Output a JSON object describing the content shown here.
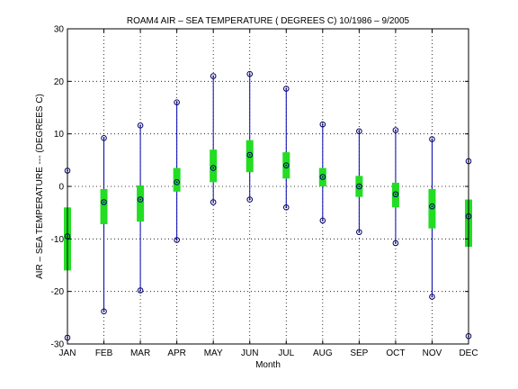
{
  "chart_data": {
    "type": "box",
    "title": "ROAM4  AIR – SEA TEMPERATURE ( DEGREES C) 10/1986 – 9/2005",
    "xlabel": "Month",
    "ylabel": "AIR – SEA TEMPERATURE --- (DEGREES C)",
    "categories": [
      "JAN",
      "FEB",
      "MAR",
      "APR",
      "MAY",
      "JUN",
      "JUL",
      "AUG",
      "SEP",
      "OCT",
      "NOV",
      "DEC"
    ],
    "ylim": [
      -30,
      30
    ],
    "yticks": [
      "-30",
      "-20",
      "-10",
      "0",
      "10",
      "20",
      "30"
    ],
    "grid": true,
    "series": [
      {
        "max": [
          3,
          9.2,
          11.6,
          16,
          21,
          21.4,
          18.6,
          11.8,
          10.5,
          10.7,
          9,
          4.8
        ],
        "q3": [
          -4,
          -0.5,
          0.2,
          3.5,
          7,
          8.8,
          6.5,
          3.5,
          2,
          0.7,
          -0.5,
          -2.5
        ],
        "median": [
          -9.5,
          -3,
          -2.5,
          0.8,
          3.5,
          6,
          4,
          1.8,
          0,
          -1.5,
          -3.8,
          -5.7
        ],
        "q1": [
          -16,
          -7.2,
          -6.7,
          -1,
          0.8,
          2.7,
          1.5,
          0,
          -2,
          -4,
          -8,
          -11.5
        ],
        "min": [
          -28.8,
          -23.8,
          -19.8,
          -10.2,
          -3,
          -2.5,
          -4,
          -6.5,
          -8.7,
          -10.8,
          -21,
          -28.5
        ]
      }
    ],
    "colors": {
      "whisker": "#0000aa",
      "box": "#22dd22",
      "marker": "#000066"
    }
  }
}
